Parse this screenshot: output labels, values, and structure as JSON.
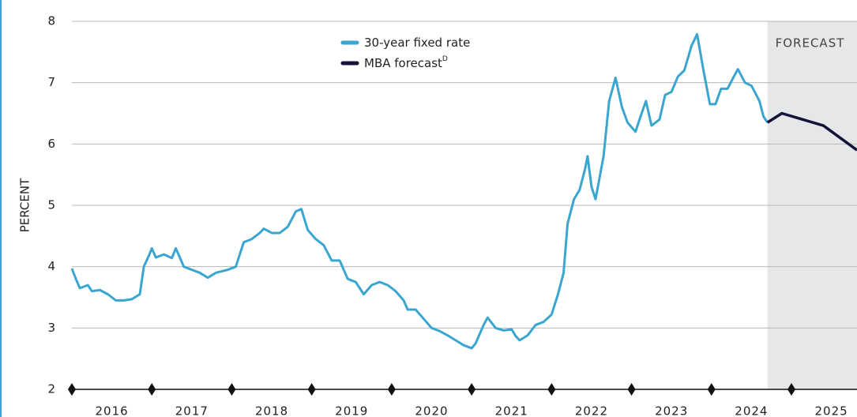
{
  "chart_data": {
    "type": "line",
    "y_label": "PERCENT",
    "forecast_label": "FORECAST",
    "forecast_start": 2024.7,
    "xlim": [
      2016,
      2025.82
    ],
    "xticks": [
      2016,
      2017,
      2018,
      2019,
      2020,
      2021,
      2022,
      2023,
      2024,
      2025
    ],
    "ylim": [
      2,
      8
    ],
    "yticks": [
      2,
      3,
      4,
      5,
      6,
      7,
      8
    ],
    "grid": true,
    "series": [
      {
        "name": "30-year fixed rate",
        "color": "#3aa6d0",
        "x": [
          2016.0,
          2016.05,
          2016.1,
          2016.2,
          2016.25,
          2016.35,
          2016.45,
          2016.55,
          2016.65,
          2016.75,
          2016.85,
          2016.9,
          2016.97,
          2017.0,
          2017.05,
          2017.15,
          2017.25,
          2017.3,
          2017.4,
          2017.5,
          2017.6,
          2017.7,
          2017.8,
          2017.95,
          2018.05,
          2018.15,
          2018.25,
          2018.35,
          2018.4,
          2018.5,
          2018.6,
          2018.7,
          2018.8,
          2018.87,
          2018.95,
          2019.05,
          2019.15,
          2019.25,
          2019.35,
          2019.45,
          2019.55,
          2019.65,
          2019.75,
          2019.85,
          2019.95,
          2020.05,
          2020.15,
          2020.2,
          2020.3,
          2020.4,
          2020.5,
          2020.6,
          2020.7,
          2020.8,
          2020.9,
          2021.0,
          2021.05,
          2021.15,
          2021.2,
          2021.3,
          2021.4,
          2021.5,
          2021.55,
          2021.6,
          2021.7,
          2021.8,
          2021.9,
          2022.0,
          2022.08,
          2022.15,
          2022.2,
          2022.28,
          2022.35,
          2022.42,
          2022.45,
          2022.5,
          2022.55,
          2022.65,
          2022.72,
          2022.8,
          2022.88,
          2022.95,
          2023.05,
          2023.1,
          2023.18,
          2023.25,
          2023.35,
          2023.42,
          2023.5,
          2023.58,
          2023.66,
          2023.75,
          2023.82,
          2023.9,
          2023.98,
          2024.05,
          2024.12,
          2024.2,
          2024.28,
          2024.33,
          2024.42,
          2024.5,
          2024.6,
          2024.65,
          2024.7
        ],
        "values": [
          3.97,
          3.8,
          3.65,
          3.7,
          3.6,
          3.62,
          3.55,
          3.45,
          3.45,
          3.47,
          3.55,
          4.0,
          4.2,
          4.3,
          4.15,
          4.2,
          4.14,
          4.3,
          4.0,
          3.95,
          3.9,
          3.82,
          3.9,
          3.95,
          4.0,
          4.4,
          4.45,
          4.55,
          4.62,
          4.55,
          4.55,
          4.65,
          4.9,
          4.94,
          4.6,
          4.45,
          4.35,
          4.1,
          4.1,
          3.8,
          3.75,
          3.55,
          3.7,
          3.75,
          3.7,
          3.6,
          3.45,
          3.3,
          3.3,
          3.15,
          3.0,
          2.95,
          2.88,
          2.8,
          2.72,
          2.67,
          2.75,
          3.05,
          3.17,
          3.0,
          2.96,
          2.98,
          2.87,
          2.8,
          2.88,
          3.05,
          3.1,
          3.22,
          3.55,
          3.9,
          4.7,
          5.1,
          5.25,
          5.6,
          5.8,
          5.3,
          5.1,
          5.8,
          6.7,
          7.08,
          6.6,
          6.35,
          6.2,
          6.4,
          6.7,
          6.3,
          6.4,
          6.8,
          6.85,
          7.1,
          7.2,
          7.6,
          7.79,
          7.2,
          6.65,
          6.65,
          6.9,
          6.9,
          7.1,
          7.22,
          7.0,
          6.95,
          6.7,
          6.45,
          6.35
        ]
      },
      {
        "name": "MBA forecast",
        "name_superscript": "D",
        "color": "#14143a",
        "x": [
          2024.7,
          2024.88,
          2025.4,
          2025.82
        ],
        "values": [
          6.35,
          6.5,
          6.3,
          5.9
        ]
      }
    ]
  }
}
